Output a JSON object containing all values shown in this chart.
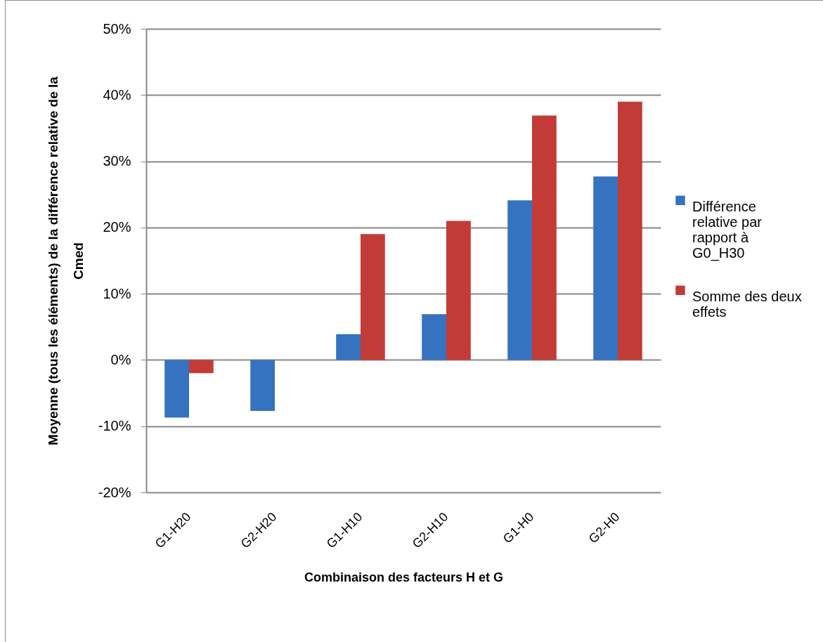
{
  "chart_data": {
    "type": "bar",
    "xlabel": "Combinaison des facteurs H et G",
    "ylabel": "Moyenne (tous les éléments) de la différence relative de la Cmed",
    "categories": [
      "G1-H20",
      "G2-H20",
      "G1-H10",
      "G2-H10",
      "G1-H0",
      "G2-H0"
    ],
    "series": [
      {
        "name": "Différence relative par rapport à G0_H30",
        "color": "#3572bf",
        "values": [
          -8.7,
          -7.7,
          3.9,
          6.9,
          24.1,
          27.7
        ]
      },
      {
        "name": "Somme des deux effets",
        "color": "#c23b37",
        "values": [
          -2.0,
          null,
          19.0,
          21.0,
          36.9,
          39.0
        ]
      }
    ],
    "ylim": [
      -20,
      50
    ],
    "yticks": [
      {
        "value": -20,
        "label": "-20%"
      },
      {
        "value": -10,
        "label": "-10%"
      },
      {
        "value": 0,
        "label": "0%"
      },
      {
        "value": 10,
        "label": "10%"
      },
      {
        "value": 20,
        "label": "20%"
      },
      {
        "value": 30,
        "label": "30%"
      },
      {
        "value": 40,
        "label": "40%"
      },
      {
        "value": 50,
        "label": "50%"
      }
    ],
    "grid": "y",
    "legend": "right"
  }
}
